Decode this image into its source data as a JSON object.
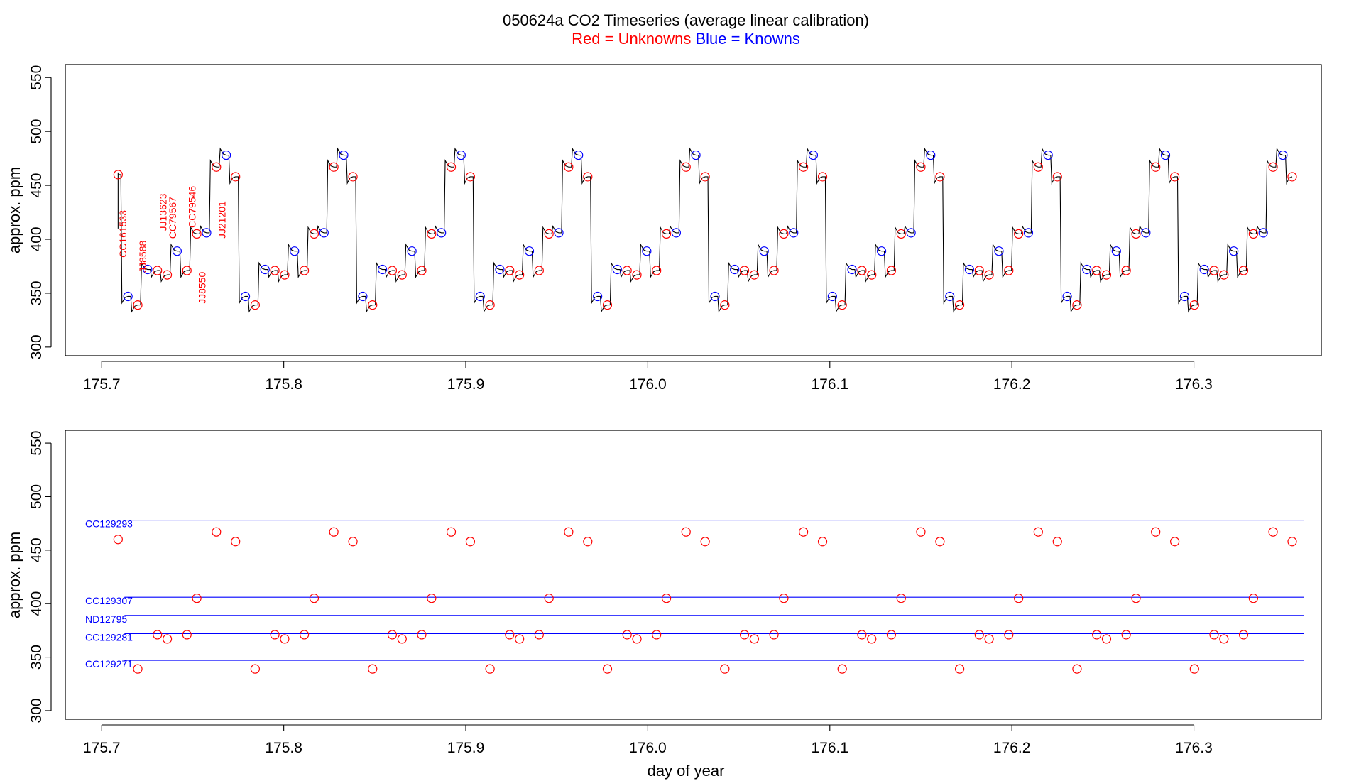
{
  "title": {
    "main": "050624a   CO2 Timeseries (average linear calibration)",
    "red_part": "Red = Unknowns",
    "blue_part": "Blue = Knowns"
  },
  "colors": {
    "unknown": "#ff0000",
    "known": "#0000ff",
    "trace": "#000000",
    "text": "#000000"
  },
  "chart_data": [
    {
      "type": "line",
      "name": "timeseries",
      "xlabel": "",
      "ylabel": "approx. ppm",
      "xlim": [
        175.68,
        176.37
      ],
      "ylim": [
        292,
        562
      ],
      "xticks": [
        {
          "v": 175.7,
          "l": "175.7"
        },
        {
          "v": 175.8,
          "l": "175.8"
        },
        {
          "v": 175.9,
          "l": "175.9"
        },
        {
          "v": 176.0,
          "l": "176.0"
        },
        {
          "v": 176.1,
          "l": "176.1"
        },
        {
          "v": 176.2,
          "l": "176.2"
        },
        {
          "v": 176.3,
          "l": "176.3"
        }
      ],
      "yticks": [
        {
          "v": 300,
          "l": "300"
        },
        {
          "v": 350,
          "l": "350"
        },
        {
          "v": 400,
          "l": "400"
        },
        {
          "v": 450,
          "l": "450"
        },
        {
          "v": 500,
          "l": "500"
        },
        {
          "v": 550,
          "l": "550"
        }
      ],
      "start_day": 175.709,
      "start_value": 410,
      "cycle_length": 0.0645,
      "cycle_count": 10,
      "cycle_pattern": [
        {
          "dt": 0.0,
          "v": 460,
          "kind": "unknown"
        },
        {
          "dt": 0.0054,
          "v": 347,
          "kind": "known"
        },
        {
          "dt": 0.0108,
          "v": 339,
          "kind": "unknown"
        },
        {
          "dt": 0.0162,
          "v": 372,
          "kind": "known"
        },
        {
          "dt": 0.0216,
          "v": 371,
          "kind": "unknown"
        },
        {
          "dt": 0.027,
          "v": 367,
          "kind": "unknown"
        },
        {
          "dt": 0.0324,
          "v": 389,
          "kind": "known"
        },
        {
          "dt": 0.0378,
          "v": 371,
          "kind": "unknown"
        },
        {
          "dt": 0.0432,
          "v": 405,
          "kind": "unknown"
        },
        {
          "dt": 0.0486,
          "v": 406,
          "kind": "known"
        },
        {
          "dt": 0.054,
          "v": 467,
          "kind": "unknown"
        },
        {
          "dt": 0.0594,
          "v": 478,
          "kind": "known"
        },
        {
          "dt": 0.0645,
          "v": 458,
          "kind": "unknown"
        }
      ],
      "annotations": [
        {
          "label": "CC161533",
          "x": 175.7135,
          "y": 405
        },
        {
          "label": "JJ8588",
          "x": 175.7245,
          "y": 384
        },
        {
          "label": "JJ13623",
          "x": 175.7355,
          "y": 425
        },
        {
          "label": "CC79567",
          "x": 175.7408,
          "y": 420
        },
        {
          "label": "CC79546",
          "x": 175.7515,
          "y": 430
        },
        {
          "label": "JJ8550",
          "x": 175.757,
          "y": 355
        },
        {
          "label": "JJ21201",
          "x": 175.768,
          "y": 418
        }
      ]
    },
    {
      "type": "scatter",
      "name": "unknowns_vs_knowns",
      "xlabel": "day of year",
      "ylabel": "approx. ppm",
      "xlim": [
        175.68,
        176.37
      ],
      "ylim": [
        292,
        562
      ],
      "xticks": [
        {
          "v": 175.7,
          "l": "175.7"
        },
        {
          "v": 175.8,
          "l": "175.8"
        },
        {
          "v": 175.9,
          "l": "175.9"
        },
        {
          "v": 176.0,
          "l": "176.0"
        },
        {
          "v": 176.1,
          "l": "176.1"
        },
        {
          "v": 176.2,
          "l": "176.2"
        },
        {
          "v": 176.3,
          "l": "176.3"
        }
      ],
      "yticks": [
        {
          "v": 300,
          "l": "300"
        },
        {
          "v": 350,
          "l": "350"
        },
        {
          "v": 400,
          "l": "400"
        },
        {
          "v": 450,
          "l": "450"
        },
        {
          "v": 500,
          "l": "500"
        },
        {
          "v": 550,
          "l": "550"
        }
      ],
      "reference_lines": [
        {
          "label": "CC129293",
          "value": 478,
          "x_start": 175.7125,
          "x_end": 176.3605
        },
        {
          "label": "CC129307",
          "value": 406,
          "x_start": 175.7125,
          "x_end": 176.3605
        },
        {
          "label": "ND12795",
          "value": 389,
          "x_start": 175.7125,
          "x_end": 176.3605
        },
        {
          "label": "CC129281",
          "value": 372,
          "x_start": 175.7125,
          "x_end": 176.3605
        },
        {
          "label": "CC129271",
          "value": 347,
          "x_start": 175.7125,
          "x_end": 176.3605
        }
      ],
      "unknown_series": "unknown points of the timeseries chart (same x/y values)"
    }
  ]
}
